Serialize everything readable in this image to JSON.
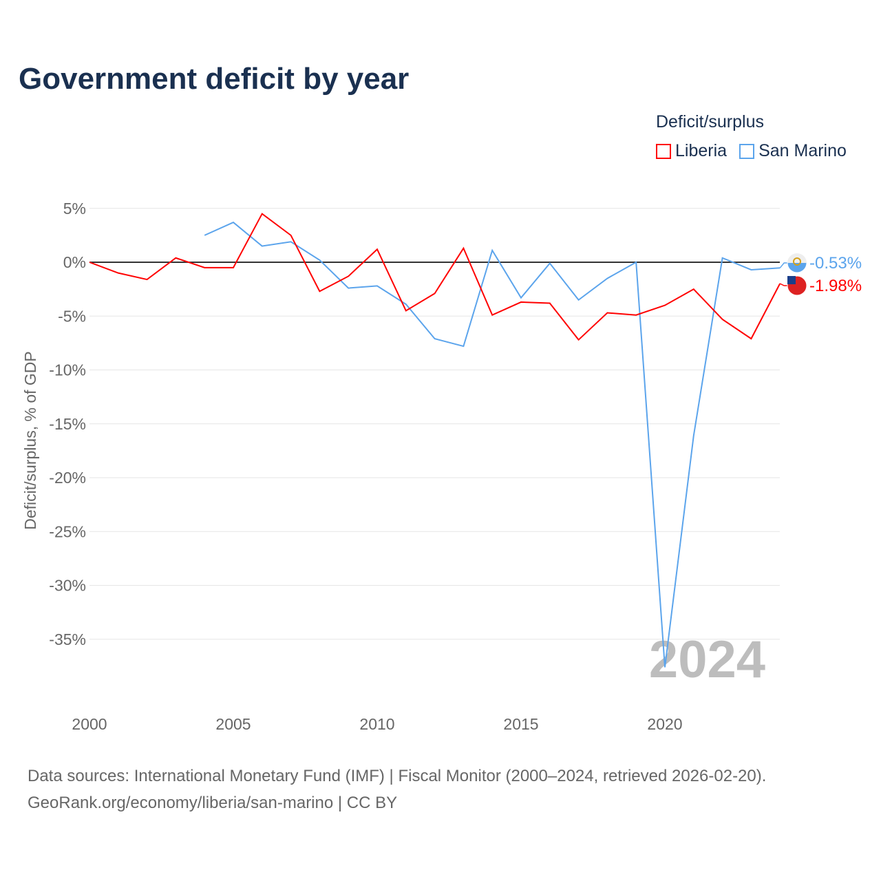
{
  "title": "Government deficit by year",
  "legend": {
    "title": "Deficit/surplus",
    "items": [
      {
        "label": "Liberia",
        "color": "#ff0000"
      },
      {
        "label": "San Marino",
        "color": "#5ba4ec"
      }
    ]
  },
  "source": {
    "line1": "Data sources: International Monetary Fund (IMF) | Fiscal Monitor (2000–2024, retrieved 2026-02-20).",
    "line2": "GeoRank.org/economy/liberia/san-marino | CC BY"
  },
  "chart_data": {
    "type": "line",
    "ylabel": "Deficit/surplus, % of GDP",
    "ylim": [
      -40,
      6
    ],
    "xlim": [
      2000,
      2024
    ],
    "yticks": [
      5,
      0,
      -5,
      -10,
      -15,
      -20,
      -25,
      -30,
      -35
    ],
    "ytick_labels": [
      "5%",
      "0%",
      "-5%",
      "-10%",
      "-15%",
      "-20%",
      "-25%",
      "-30%",
      "-35%"
    ],
    "xticks": [
      2000,
      2005,
      2010,
      2015,
      2020
    ],
    "xtick_labels": [
      "2000",
      "2005",
      "2010",
      "2015",
      "2020"
    ],
    "watermark": "2024",
    "series": [
      {
        "name": "Liberia",
        "color": "#ff0000",
        "end_label": "-1.98%",
        "x": [
          2000,
          2001,
          2002,
          2003,
          2004,
          2005,
          2006,
          2007,
          2008,
          2009,
          2010,
          2011,
          2012,
          2013,
          2014,
          2015,
          2016,
          2017,
          2018,
          2019,
          2020,
          2021,
          2022,
          2023,
          2024
        ],
        "values": [
          0,
          -1.0,
          -1.6,
          0.4,
          -0.5,
          -0.5,
          4.5,
          2.5,
          -2.7,
          -1.3,
          1.2,
          -4.5,
          -2.9,
          1.3,
          -4.9,
          -3.7,
          -3.8,
          -7.2,
          -4.7,
          -4.9,
          -4.0,
          -2.5,
          -5.3,
          -7.1,
          -1.98
        ]
      },
      {
        "name": "San Marino",
        "color": "#5ba4ec",
        "end_label": "-0.53%",
        "x": [
          2004,
          2005,
          2006,
          2007,
          2008,
          2009,
          2010,
          2011,
          2012,
          2013,
          2014,
          2015,
          2016,
          2017,
          2018,
          2019,
          2020,
          2021,
          2022,
          2023,
          2024
        ],
        "values": [
          2.5,
          3.7,
          1.5,
          1.9,
          0.2,
          -2.4,
          -2.2,
          -3.9,
          -7.1,
          -7.8,
          1.1,
          -3.3,
          -0.1,
          -3.5,
          -1.5,
          0,
          -37.6,
          -16.1,
          0.4,
          -0.7,
          -0.53
        ]
      }
    ]
  }
}
